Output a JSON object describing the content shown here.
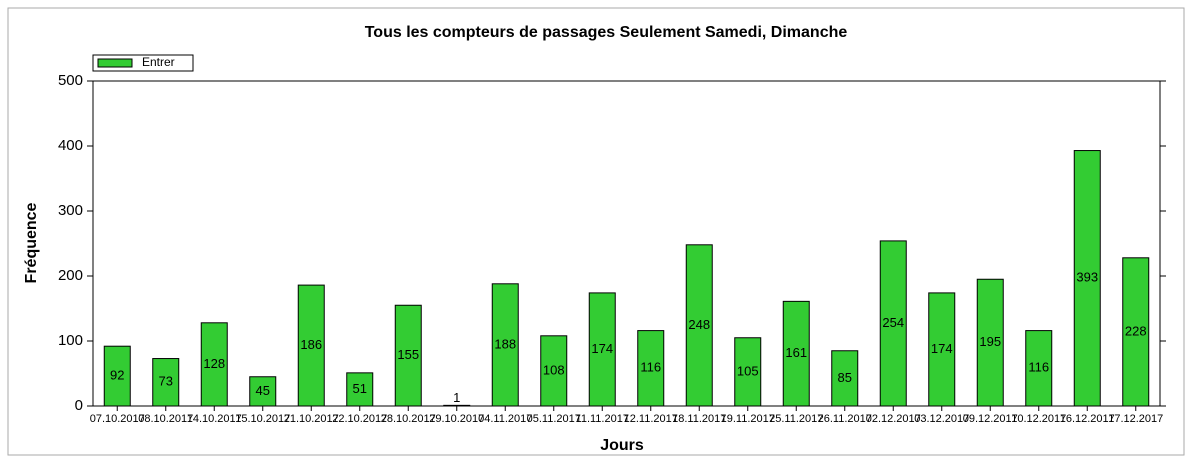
{
  "chart_data": {
    "type": "bar",
    "title": "Tous les compteurs de passages  Seulement Samedi, Dimanche",
    "x_label": "Jours",
    "y_label": "Fréquence",
    "categories": [
      "07.10.2017",
      "08.10.2017",
      "14.10.2017",
      "15.10.2017",
      "21.10.2017",
      "22.10.2017",
      "28.10.2017",
      "29.10.2017",
      "04.11.2017",
      "05.11.2017",
      "11.11.2017",
      "12.11.2017",
      "18.11.2017",
      "19.11.2017",
      "25.11.2017",
      "26.11.2017",
      "02.12.2017",
      "03.12.2017",
      "09.12.2017",
      "10.12.2017",
      "16.12.2017",
      "17.12.2017"
    ],
    "series": [
      {
        "name": "Entrer",
        "color": "#33cc33",
        "values": [
          92,
          73,
          128,
          45,
          186,
          51,
          155,
          1,
          188,
          108,
          174,
          116,
          248,
          105,
          161,
          85,
          254,
          174,
          195,
          116,
          393,
          228
        ]
      }
    ],
    "ylim": [
      0,
      500
    ],
    "yticks": [
      0,
      100,
      200,
      300,
      400,
      500
    ],
    "legend": "top-left"
  }
}
